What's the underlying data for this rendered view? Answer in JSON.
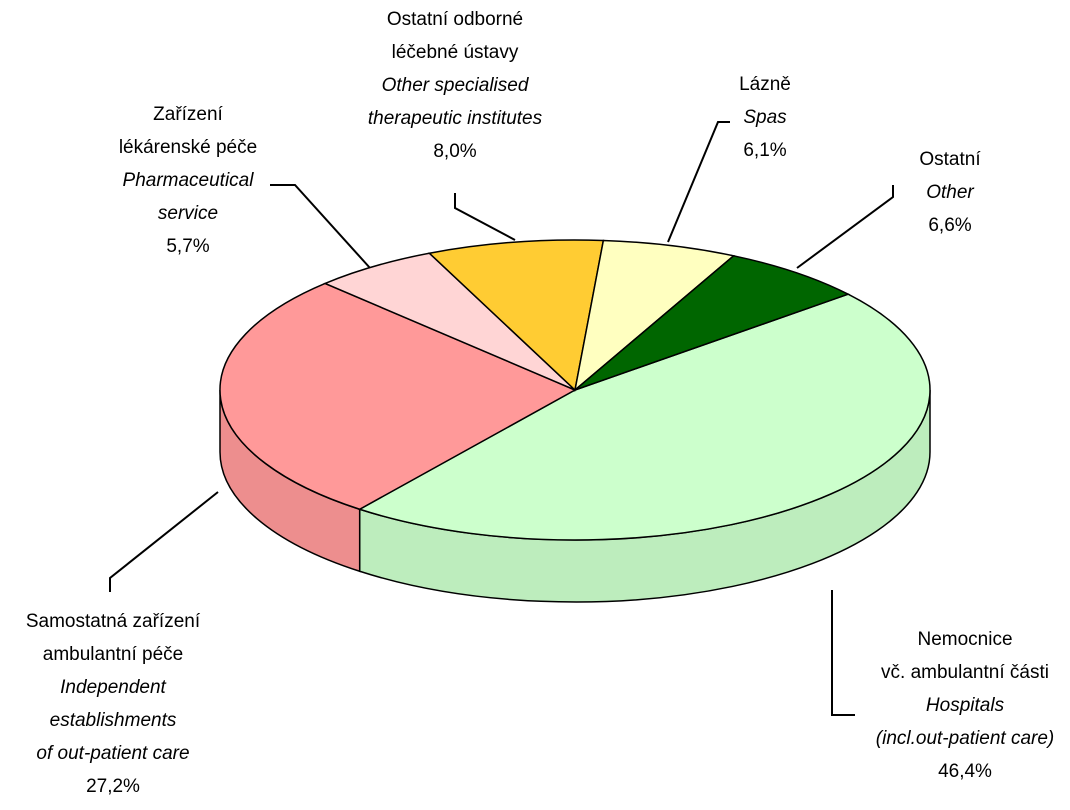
{
  "chart_data": {
    "type": "pie",
    "labels": [
      [
        "Nemocnice",
        "vč. ambulantní části"
      ],
      [
        "Samostatná zařízení",
        "ambulantní péče"
      ],
      [
        "Zařízení",
        "lékárenské péče"
      ],
      [
        "Ostatní odborné",
        "léčebné ústavy"
      ],
      [
        "Lázně"
      ],
      [
        "Ostatní"
      ]
    ],
    "labels_en": [
      [
        "Hospitals",
        "(incl.out-patient care)"
      ],
      [
        "Independent",
        "establishments",
        "of out-patient care"
      ],
      [
        "Pharmaceutical",
        "service"
      ],
      [
        "Other specialised",
        "therapeutic institutes"
      ],
      [
        "Spas"
      ],
      [
        "Other"
      ]
    ],
    "values": [
      46.4,
      27.2,
      5.7,
      8.0,
      6.1,
      6.6
    ],
    "value_labels": [
      "46,4%",
      "27,2%",
      "5,7%",
      "8,0%",
      "6,1%",
      "6,6%"
    ],
    "colors": [
      "#ccffcc",
      "#ff9999",
      "#ffd5d5",
      "#ffcc33",
      "#ffffc0",
      "#006600"
    ]
  }
}
